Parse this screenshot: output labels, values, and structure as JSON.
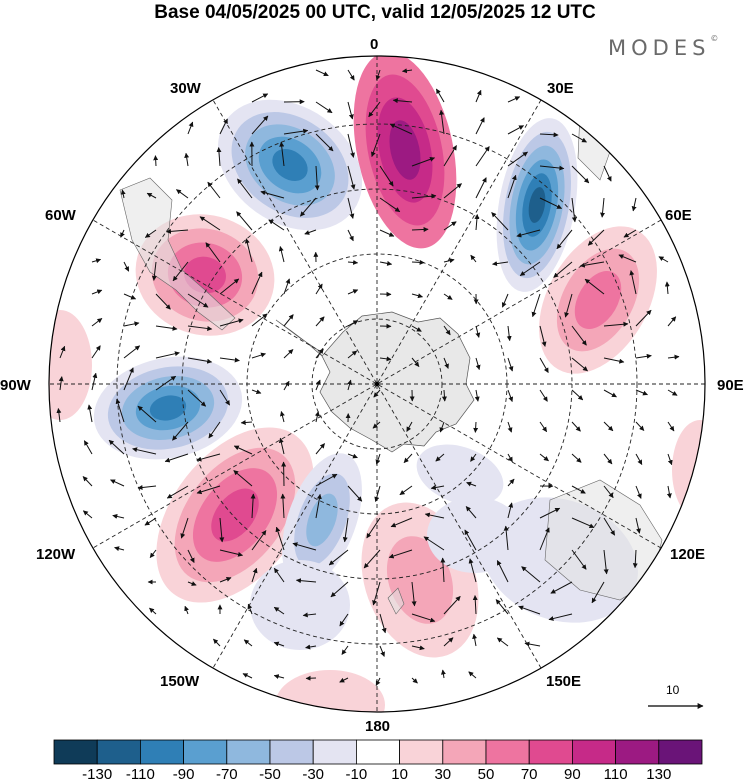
{
  "title": "Base 04/05/2025 00 UTC, valid 12/05/2025 12 UTC",
  "brand": "MODES",
  "brand_mark": "©",
  "longitude_labels": {
    "n0": "0",
    "n30e": "30E",
    "n60e": "60E",
    "n90e": "90E",
    "n120e": "120E",
    "n150e": "150E",
    "n180": "180",
    "n150w": "150W",
    "n120w": "120W",
    "n90w": "90W",
    "n60w": "60W",
    "n30w": "30W"
  },
  "colorbar": {
    "colors": [
      "#0f3b58",
      "#1e5f8c",
      "#2f7fb6",
      "#5a9fd0",
      "#8fb8de",
      "#bcc8e6",
      "#e4e4f2",
      "#ffffff",
      "#f9d3d8",
      "#f4a6b8",
      "#ee74a0",
      "#e04a90",
      "#c62a88",
      "#9c1a82",
      "#6a1478"
    ],
    "tick_labels": [
      "-130",
      "-110",
      "-90",
      "-70",
      "-50",
      "-30",
      "-10",
      "10",
      "30",
      "50",
      "70",
      "90",
      "110",
      "130"
    ]
  },
  "vector_scale_label": "10"
}
